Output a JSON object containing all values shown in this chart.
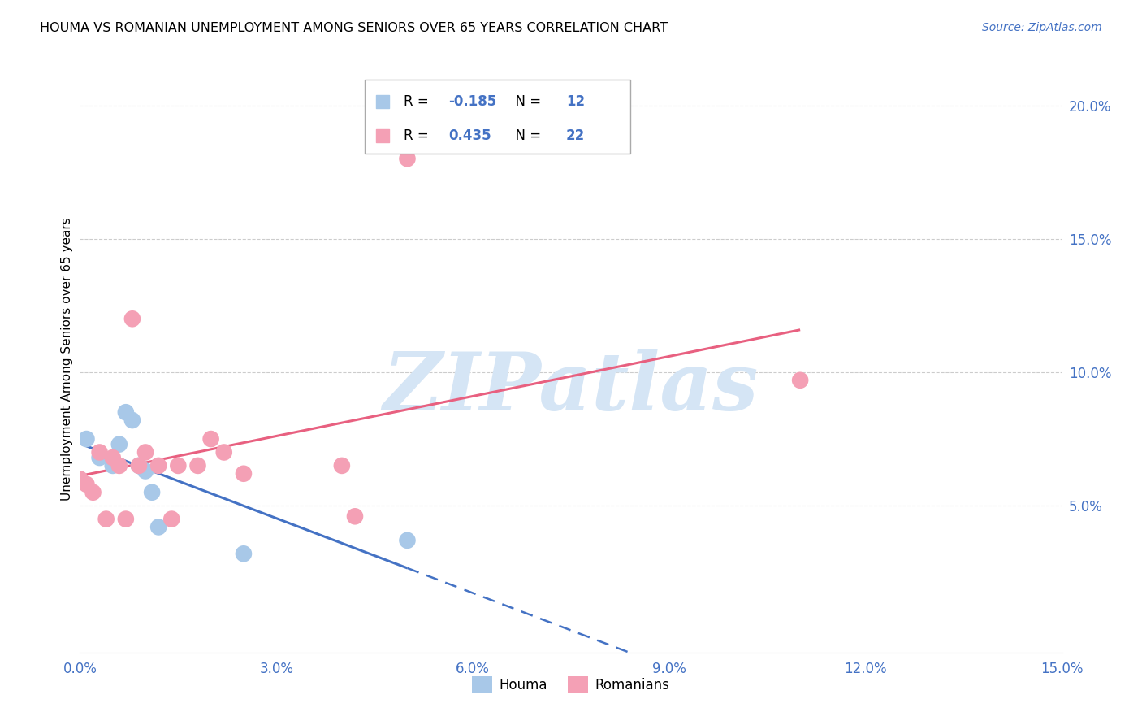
{
  "title": "HOUMA VS ROMANIAN UNEMPLOYMENT AMONG SENIORS OVER 65 YEARS CORRELATION CHART",
  "source": "Source: ZipAtlas.com",
  "ylabel": "Unemployment Among Seniors over 65 years",
  "houma_R": -0.185,
  "houma_N": 12,
  "romanian_R": 0.435,
  "romanian_N": 22,
  "xlim": [
    0.0,
    0.15
  ],
  "ylim": [
    -0.005,
    0.215
  ],
  "xticks": [
    0.0,
    0.03,
    0.06,
    0.09,
    0.12,
    0.15
  ],
  "xtick_labels": [
    "0.0%",
    "3.0%",
    "6.0%",
    "9.0%",
    "12.0%",
    "15.0%"
  ],
  "yticks_right": [
    0.05,
    0.1,
    0.15,
    0.2
  ],
  "ytick_labels_right": [
    "5.0%",
    "10.0%",
    "15.0%",
    "20.0%"
  ],
  "houma_color": "#a8c8e8",
  "romanian_color": "#f4a0b5",
  "houma_line_color": "#4472c4",
  "romanian_line_color": "#e86080",
  "houma_x": [
    0.001,
    0.003,
    0.005,
    0.006,
    0.007,
    0.008,
    0.009,
    0.01,
    0.011,
    0.012,
    0.025,
    0.05
  ],
  "houma_y": [
    0.075,
    0.068,
    0.065,
    0.073,
    0.085,
    0.082,
    0.065,
    0.063,
    0.055,
    0.042,
    0.032,
    0.037
  ],
  "romanian_x": [
    0.0,
    0.001,
    0.002,
    0.003,
    0.004,
    0.005,
    0.006,
    0.007,
    0.008,
    0.009,
    0.01,
    0.012,
    0.014,
    0.015,
    0.018,
    0.02,
    0.022,
    0.025,
    0.04,
    0.042,
    0.05,
    0.11
  ],
  "romanian_y": [
    0.06,
    0.058,
    0.055,
    0.07,
    0.045,
    0.068,
    0.065,
    0.045,
    0.12,
    0.065,
    0.07,
    0.065,
    0.045,
    0.065,
    0.065,
    0.075,
    0.07,
    0.062,
    0.065,
    0.046,
    0.18,
    0.097
  ],
  "watermark": "ZIPatlas",
  "watermark_color": "#d5e5f5",
  "background_color": "#ffffff",
  "houma_line_solid_end": 0.05,
  "romanian_line_solid_end": 0.11
}
